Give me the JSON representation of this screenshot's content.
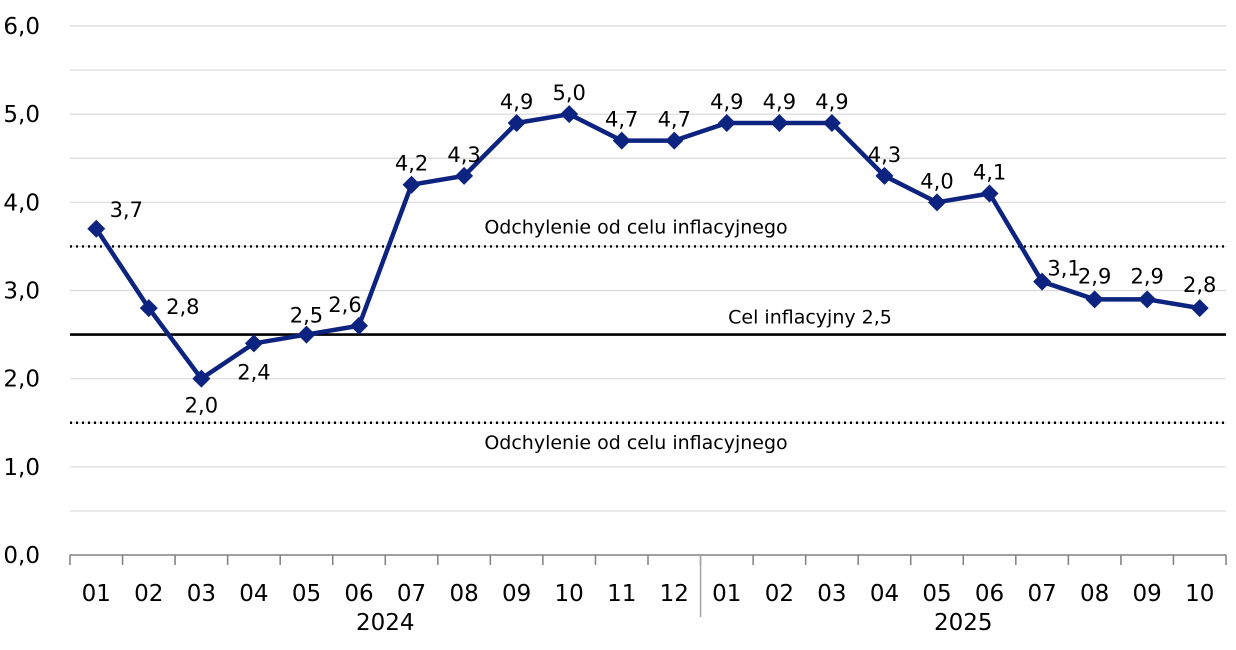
{
  "chart_data": {
    "type": "line",
    "categories": [
      "01",
      "02",
      "03",
      "04",
      "05",
      "06",
      "07",
      "08",
      "09",
      "10",
      "11",
      "12",
      "01",
      "02",
      "03",
      "04",
      "05",
      "06",
      "07",
      "08",
      "09",
      "10"
    ],
    "category_groups": [
      {
        "label": "2024",
        "count": 12
      },
      {
        "label": "2025",
        "count": 10
      }
    ],
    "series": [
      {
        "values": [
          3.7,
          2.8,
          2.0,
          2.4,
          2.5,
          2.6,
          4.2,
          4.3,
          4.9,
          5.0,
          4.7,
          4.7,
          4.9,
          4.9,
          4.9,
          4.3,
          4.0,
          4.1,
          3.1,
          2.9,
          2.9,
          2.8
        ]
      }
    ],
    "data_labels": [
      "3,7",
      "2,8",
      "2,0",
      "2,4",
      "2,5",
      "2,6",
      "4,2",
      "4,3",
      "4,9",
      "5,0",
      "4,7",
      "4,7",
      "4,9",
      "4,9",
      "4,9",
      "4,3",
      "4,0",
      "4,1",
      "3,1",
      "2,9",
      "2,9",
      "2,8"
    ],
    "ylim": [
      0,
      6
    ],
    "y_ticks": [
      "0,0",
      "1,0",
      "2,0",
      "3,0",
      "4,0",
      "5,0",
      "6,0"
    ],
    "grid": true,
    "series_color": "#0d2380",
    "reference_lines": [
      {
        "value": 3.5,
        "style": "dotted",
        "label": "Odchylenie od celu inflacyjnego"
      },
      {
        "value": 2.5,
        "style": "solid",
        "label": "Cel inflacyjny 2,5"
      },
      {
        "value": 1.5,
        "style": "dotted",
        "label": "Odchylenie od celu inflacyjnego"
      }
    ]
  }
}
